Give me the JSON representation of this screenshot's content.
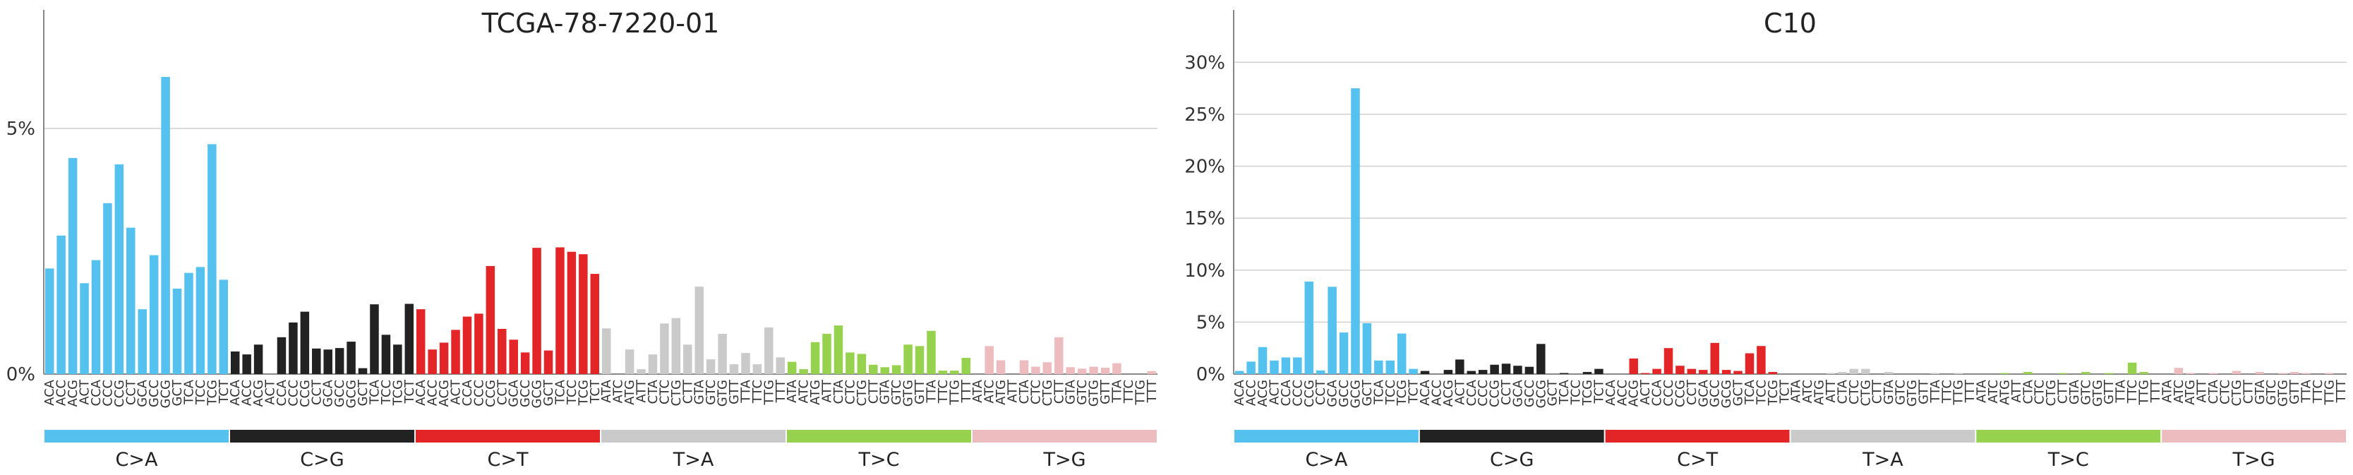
{
  "colors": {
    "C>A": "#55c1ee",
    "C>G": "#222222",
    "C>T": "#e42528",
    "T>A": "#cacaca",
    "T>C": "#97d24f",
    "T>G": "#edbcbf"
  },
  "chart_data": [
    {
      "type": "bar",
      "title": "TCGA-78-7220-01",
      "xlabel": "",
      "ylabel": "",
      "ylim": [
        0,
        7.3
      ],
      "yticks": [
        0,
        5
      ],
      "ytick_labels": [
        "0%",
        "5%"
      ],
      "grid": true,
      "mutation_types": [
        "C>A",
        "C>G",
        "C>T",
        "T>A",
        "T>C",
        "T>G"
      ],
      "categories": [
        "ACA",
        "ACC",
        "ACG",
        "ACT",
        "CCA",
        "CCC",
        "CCG",
        "CCT",
        "GCA",
        "GCC",
        "GCG",
        "GCT",
        "TCA",
        "TCC",
        "TCG",
        "TCT",
        "ACA",
        "ACC",
        "ACG",
        "ACT",
        "CCA",
        "CCC",
        "CCG",
        "CCT",
        "GCA",
        "GCC",
        "GCG",
        "GCT",
        "TCA",
        "TCC",
        "TCG",
        "TCT",
        "ACA",
        "ACC",
        "ACG",
        "ACT",
        "CCA",
        "CCC",
        "CCG",
        "CCT",
        "GCA",
        "GCC",
        "GCG",
        "GCT",
        "TCA",
        "TCC",
        "TCG",
        "TCT",
        "ATA",
        "ATC",
        "ATG",
        "ATT",
        "CTA",
        "CTC",
        "CTG",
        "CTT",
        "GTA",
        "GTC",
        "GTG",
        "GTT",
        "TTA",
        "TTC",
        "TTG",
        "TTT",
        "ATA",
        "ATC",
        "ATG",
        "ATT",
        "CTA",
        "CTC",
        "CTG",
        "CTT",
        "GTA",
        "GTC",
        "GTG",
        "GTT",
        "TTA",
        "TTC",
        "TTG",
        "TTT",
        "ATA",
        "ATC",
        "ATG",
        "ATT",
        "CTA",
        "CTC",
        "CTG",
        "CTT",
        "GTA",
        "GTC",
        "GTG",
        "GTT",
        "TTA",
        "TTC",
        "TTG",
        "TTT"
      ],
      "values": [
        2.15,
        2.82,
        4.4,
        1.85,
        2.32,
        3.48,
        4.27,
        2.98,
        1.32,
        2.42,
        6.05,
        1.74,
        2.06,
        2.18,
        4.68,
        1.92,
        0.46,
        0.4,
        0.6,
        0,
        0.75,
        1.05,
        1.27,
        0.52,
        0.5,
        0.53,
        0.66,
        0.12,
        1.42,
        0.8,
        0.6,
        1.43,
        1.32,
        0.5,
        0.64,
        0.9,
        1.17,
        1.23,
        2.2,
        0.92,
        0.7,
        0.44,
        2.57,
        0.48,
        2.58,
        2.49,
        2.44,
        2.04,
        0.93,
        0,
        0.5,
        0.1,
        0.4,
        1.03,
        1.14,
        0.6,
        1.78,
        0.3,
        0.82,
        0.2,
        0.43,
        0.2,
        0.95,
        0.34,
        0.25,
        0.1,
        0.65,
        0.82,
        0.99,
        0.44,
        0.41,
        0.19,
        0.14,
        0.18,
        0.6,
        0.57,
        0.88,
        0.07,
        0.07,
        0.33,
        0,
        0.57,
        0.28,
        0,
        0.28,
        0.15,
        0.24,
        0.75,
        0.14,
        0.11,
        0.15,
        0.13,
        0.22,
        0,
        0,
        0.06
      ]
    },
    {
      "type": "bar",
      "title": "C10",
      "xlabel": "",
      "ylabel": "",
      "ylim": [
        0,
        34.5
      ],
      "yticks": [
        0,
        5,
        10,
        15,
        20,
        25,
        30
      ],
      "ytick_labels": [
        "0%",
        "5%",
        "10%",
        "15%",
        "20%",
        "25%",
        "30%"
      ],
      "grid": true,
      "mutation_types": [
        "C>A",
        "C>G",
        "C>T",
        "T>A",
        "T>C",
        "T>G"
      ],
      "categories": [
        "ACA",
        "ACC",
        "ACG",
        "ACT",
        "CCA",
        "CCC",
        "CCG",
        "CCT",
        "GCA",
        "GCC",
        "GCG",
        "GCT",
        "TCA",
        "TCC",
        "TCG",
        "TCT",
        "ACA",
        "ACC",
        "ACG",
        "ACT",
        "CCA",
        "CCC",
        "CCG",
        "CCT",
        "GCA",
        "GCC",
        "GCG",
        "GCT",
        "TCA",
        "TCC",
        "TCG",
        "TCT",
        "ACA",
        "ACC",
        "ACG",
        "ACT",
        "CCA",
        "CCC",
        "CCG",
        "CCT",
        "GCA",
        "GCC",
        "GCG",
        "GCT",
        "TCA",
        "TCC",
        "TCG",
        "TCT",
        "ATA",
        "ATC",
        "ATG",
        "ATT",
        "CTA",
        "CTC",
        "CTG",
        "CTT",
        "GTA",
        "GTC",
        "GTG",
        "GTT",
        "TTA",
        "TTC",
        "TTG",
        "TTT",
        "ATA",
        "ATC",
        "ATG",
        "ATT",
        "CTA",
        "CTC",
        "CTG",
        "CTT",
        "GTA",
        "GTC",
        "GTG",
        "GTT",
        "TTA",
        "TTC",
        "TTG",
        "TTT",
        "ATA",
        "ATC",
        "ATG",
        "ATT",
        "CTA",
        "CTC",
        "CTG",
        "CTT",
        "GTA",
        "GTC",
        "GTG",
        "GTT",
        "TTA",
        "TTC",
        "TTG",
        "TTT"
      ],
      "values": [
        0.3,
        1.2,
        2.6,
        1.3,
        1.6,
        1.6,
        8.9,
        0.35,
        8.4,
        4,
        27.5,
        4.9,
        1.3,
        1.3,
        3.9,
        0.5,
        0.3,
        0,
        0.4,
        1.4,
        0.3,
        0.4,
        0.9,
        1,
        0.8,
        0.7,
        2.9,
        0,
        0.1,
        0,
        0.2,
        0.5,
        0,
        0,
        1.5,
        0.1,
        0.5,
        2.5,
        0.8,
        0.5,
        0.4,
        3,
        0.4,
        0.3,
        2,
        2.7,
        0.2,
        0,
        0,
        0,
        0,
        0.1,
        0.2,
        0.5,
        0.5,
        0,
        0.2,
        0,
        0,
        0,
        0.1,
        0,
        0.1,
        0,
        0,
        0,
        0.1,
        0,
        0.2,
        0,
        0,
        0.1,
        0,
        0.2,
        0,
        0.1,
        0,
        1.1,
        0.2,
        0,
        0,
        0.6,
        0.1,
        0,
        0.1,
        0,
        0.3,
        0,
        0.2,
        0,
        0.1,
        0.2,
        0.1,
        0,
        0.1,
        0
      ]
    }
  ]
}
